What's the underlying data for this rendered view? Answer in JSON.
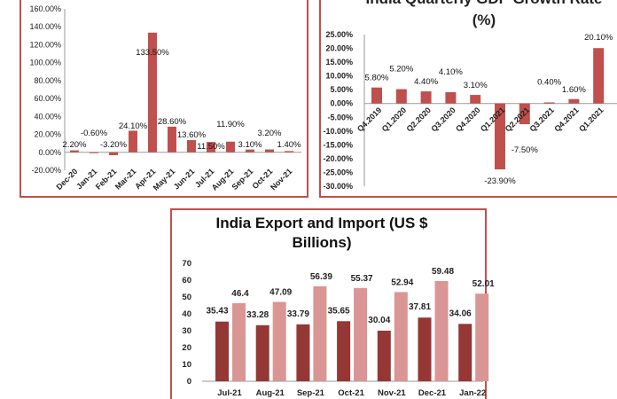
{
  "colors": {
    "bar": "#c0504d",
    "export": "#953735",
    "import": "#d99694",
    "frame": "#c0504d",
    "axis": "#999999"
  },
  "chart_data": [
    {
      "type": "bar",
      "title": "",
      "categories": [
        "Dec-20",
        "Jan-21",
        "Feb-21",
        "Mar-21",
        "Apr-21",
        "May-21",
        "Jun-21",
        "Jul-21",
        "Aug-21",
        "Sep-21",
        "Oct-21",
        "Nov-21"
      ],
      "values": [
        2.2,
        -0.6,
        -3.2,
        24.1,
        133.5,
        28.6,
        13.6,
        11.5,
        11.9,
        3.1,
        3.2,
        1.4
      ],
      "labels": [
        "2.20%",
        "-0.60%",
        "-3.20%",
        "24.10%",
        "133.50%",
        "28.60%",
        "13.60%",
        "11.50%",
        "11.90%",
        "3.10%",
        "3.20%",
        "1.40%"
      ],
      "yticks": [
        "-20.00%",
        "0.00%",
        "20.00%",
        "40.00%",
        "60.00%",
        "80.00%",
        "100.00%",
        "120.00%",
        "140.00%",
        "160.00%"
      ],
      "ylim": [
        -20,
        160
      ],
      "grid": false
    },
    {
      "type": "bar",
      "title": "India Quarterly GDP Growth Rate",
      "title_line2": "(%)",
      "categories": [
        "Q4.2019",
        "Q1.2020",
        "Q2.2020",
        "Q3.2020",
        "Q4.2020",
        "Q1.2021",
        "Q2.2021",
        "Q3.2021",
        "Q4.2021",
        "Q1.2021"
      ],
      "values": [
        5.8,
        5.2,
        4.4,
        4.1,
        3.1,
        -23.9,
        -7.5,
        0.4,
        1.6,
        20.1
      ],
      "labels": [
        "5.80%",
        "5.20%",
        "4.40%",
        "4.10%",
        "3.10%",
        "-23.90%",
        "-7.50%",
        "0.40%",
        "1.60%",
        "20.10%"
      ],
      "yticks": [
        "-30.00%",
        "-25.00%",
        "-20.00%",
        "-15.00%",
        "-10.00%",
        "-5.00%",
        "0.00%",
        "5.00%",
        "10.00%",
        "15.00%",
        "20.00%",
        "25.00%"
      ],
      "ylim": [
        -30,
        25
      ],
      "grid": false
    },
    {
      "type": "bar",
      "title": "India Export and Import (US $",
      "title_line2": "Billions)",
      "categories": [
        "Jul-21",
        "Aug-21",
        "Sep-21",
        "Oct-21",
        "Nov-21",
        "Dec-21",
        "Jan-22"
      ],
      "series": [
        {
          "values": [
            35.43,
            33.28,
            33.79,
            35.65,
            30.04,
            37.81,
            34.06
          ],
          "labels": [
            "35.43",
            "33.28",
            "33.79",
            "35.65",
            "30.04",
            "37.81",
            "34.06"
          ]
        },
        {
          "values": [
            46.4,
            47.09,
            56.39,
            55.37,
            52.94,
            59.48,
            52.01
          ],
          "labels": [
            "46.4",
            "47.09",
            "56.39",
            "55.37",
            "52.94",
            "59.48",
            "52.01"
          ]
        }
      ],
      "yticks": [
        "0",
        "10",
        "20",
        "30",
        "40",
        "50",
        "60",
        "70"
      ],
      "ylim": [
        0,
        70
      ],
      "grid": false
    }
  ]
}
